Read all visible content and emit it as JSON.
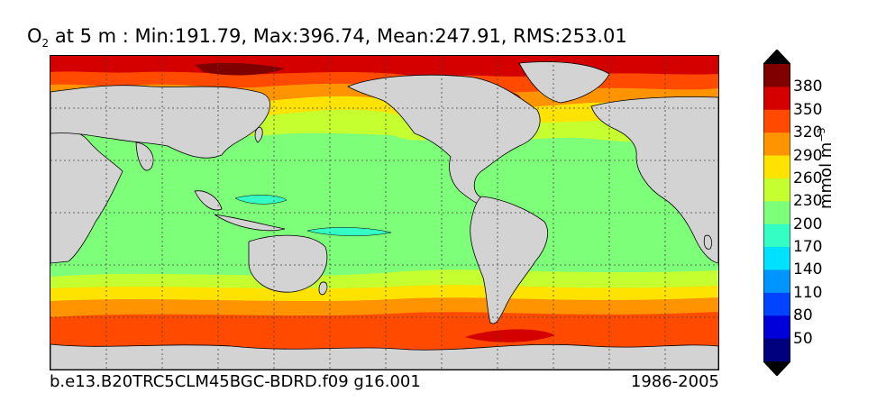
{
  "title": {
    "variable": "O",
    "subscript": "2",
    "rest": " at 5 m : Min:191.79, Max:396.74, Mean:247.91, RMS:253.01"
  },
  "footer": {
    "case_name": "b.e13.B20TRC5CLM45BGC-BDRD.f09 g16.001",
    "period": "1986-2005"
  },
  "colorbar": {
    "units_text": "mmol m",
    "units_exponent": "−3",
    "tick_labels": [
      "380",
      "350",
      "320",
      "290",
      "260",
      "230",
      "200",
      "170",
      "140",
      "110",
      "80",
      "50"
    ],
    "level_colors": [
      "#7f0000",
      "#d40000",
      "#ff4a00",
      "#ff9400",
      "#ffe300",
      "#c6ff30",
      "#7dff7a",
      "#33ffc4",
      "#00e0ff",
      "#0094ff",
      "#0044ff",
      "#0000d8",
      "#00007f"
    ],
    "extend": "both"
  },
  "map": {
    "projection": "cylindrical",
    "land_color": "#d3d3d3",
    "gridlines": "dotted",
    "min": 191.79,
    "max": 396.74,
    "mean": 247.91,
    "rms": 253.01
  }
}
